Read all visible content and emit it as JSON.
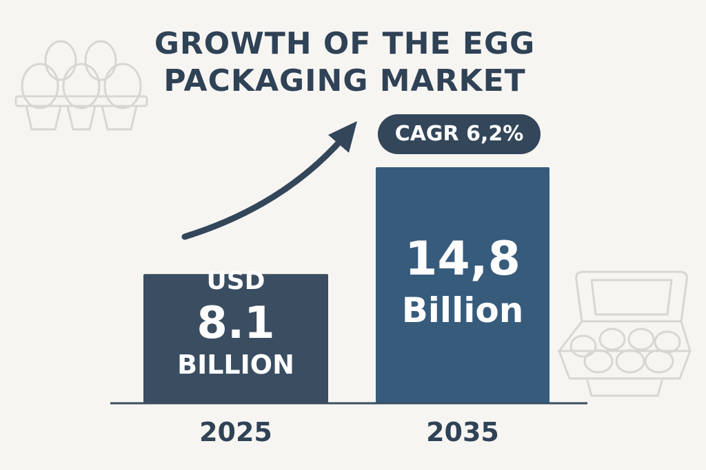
{
  "title_line1": "GROWTH OF THE EGG",
  "title_line2": "PACKAGING MARKET",
  "cagr_label": "CAGR 6,2%",
  "bar_texts": {
    "bar_2025": [
      "USD",
      "8.1",
      "BILLION"
    ],
    "bar_2035": [
      "14,8",
      "Billion"
    ]
  },
  "colors": {
    "background": "#f7f5f2",
    "title": "#2f4256",
    "bar_2025": "#3a4d61",
    "bar_2035": "#375b7b",
    "arrow": "#33465a",
    "axis": "#3a4d61",
    "icons": "#d8d6d2"
  },
  "chart_data": {
    "type": "bar",
    "categories": [
      "2025",
      "2035"
    ],
    "values": [
      8.1,
      14.8
    ],
    "unit": "USD Billion",
    "title": "GROWTH OF THE EGG PACKAGING MARKET",
    "annotation": "CAGR 6,2%",
    "grid": false,
    "legend": "none"
  }
}
